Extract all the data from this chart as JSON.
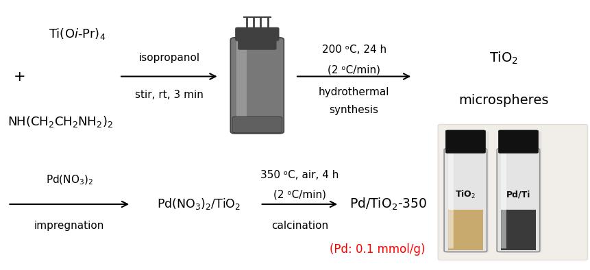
{
  "bg_color": "#ffffff",
  "top_row": {
    "reactants_line1": "Ti(O$i$-Pr)$_4$",
    "plus": "+",
    "reactants_line2": "NH(CH$_2$CH$_2$NH$_2$)$_2$",
    "arrow1_label_top": "isopropanol",
    "arrow1_label_bot": "stir, rt, 3 min",
    "arrow2_label_top": "200 ᵒC, 24 h",
    "arrow2_label_mid": "(2 ᵒC/min)",
    "arrow2_label_bot1": "hydrothermal",
    "arrow2_label_bot2": "synthesis",
    "product1_line1": "TiO$_2$",
    "product1_line2": "microspheres"
  },
  "bottom_row": {
    "arrow0_label_top": "Pd(NO$_3$)$_2$",
    "arrow0_label_bot": "impregnation",
    "intermediate": "Pd(NO$_3$)$_2$/TiO$_2$",
    "arrow1_label_top": "350 ᵒC, air, 4 h",
    "arrow1_label_mid": "(2 ᵒC/min)",
    "arrow1_label_bot": "calcination",
    "product2": "Pd/TiO$_2$-350",
    "note": "(Pd: 0.1 mmol/g)",
    "note_color": "#ff0000"
  },
  "font_size_main": 13,
  "font_size_label": 11,
  "font_size_note": 12,
  "arrow_color": "#000000",
  "text_color": "#000000",
  "vial1_label": "TiO$_2$",
  "vial2_label": "Pd/Ti",
  "vial1_powder": "#c8a96e",
  "vial2_powder": "#3a3a3a",
  "vial_glass": "#e8e8e8",
  "vial_cap": "#111111"
}
